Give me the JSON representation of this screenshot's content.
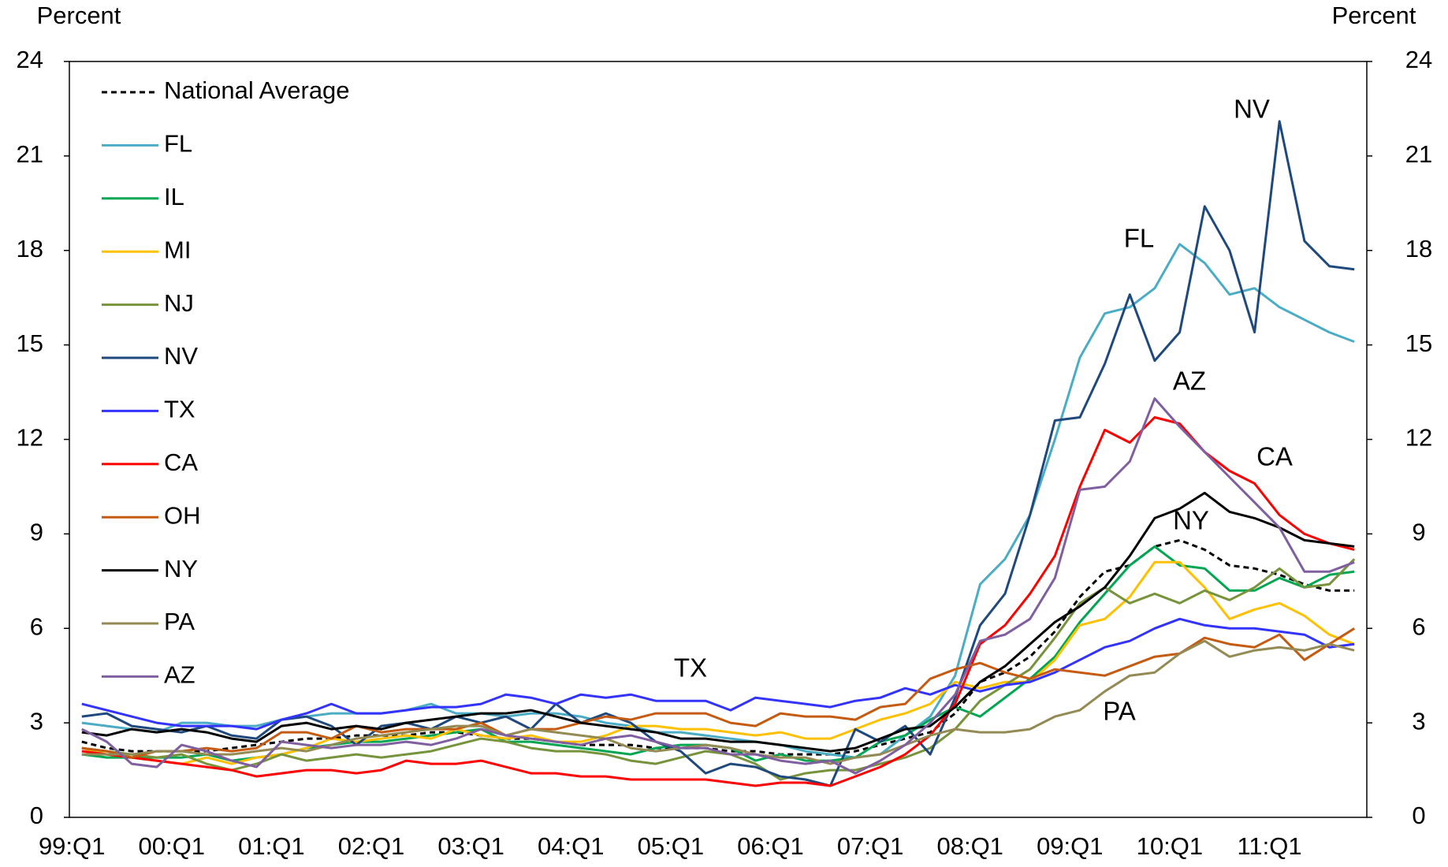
{
  "chart_data": {
    "type": "line",
    "y_axis_label": "Percent",
    "y2_axis_label": "Percent",
    "categories": [
      "99:Q1",
      null,
      null,
      null,
      "00:Q1",
      null,
      null,
      null,
      "01:Q1",
      null,
      null,
      null,
      "02:Q1",
      null,
      null,
      null,
      "03:Q1",
      null,
      null,
      null,
      "04:Q1",
      null,
      null,
      null,
      "05:Q1",
      null,
      null,
      null,
      "06:Q1",
      null,
      null,
      null,
      "07:Q1",
      null,
      null,
      null,
      "08:Q1",
      null,
      null,
      null,
      "09:Q1",
      null,
      null,
      null,
      "10:Q1",
      null,
      null,
      null,
      "11:Q1",
      null,
      null,
      null
    ],
    "ylim": [
      0,
      24
    ],
    "yticks": [
      0,
      3,
      6,
      9,
      12,
      15,
      18,
      21,
      24
    ],
    "y2lim": [
      0,
      24
    ],
    "y2ticks": [
      0,
      3,
      6,
      9,
      12,
      15,
      18,
      21,
      24
    ],
    "legend": "upper left",
    "series": [
      {
        "name": "National Average",
        "color": "#000000",
        "dashed": true,
        "values": [
          2.4,
          2.2,
          2.1,
          2.1,
          2.1,
          2.1,
          2.2,
          2.3,
          2.4,
          2.5,
          2.5,
          2.6,
          2.6,
          2.6,
          2.7,
          2.7,
          2.6,
          2.5,
          2.5,
          2.4,
          2.3,
          2.3,
          2.3,
          2.2,
          2.2,
          2.2,
          2.1,
          2.1,
          2.0,
          2.0,
          2.0,
          2.1,
          2.3,
          2.5,
          2.7,
          3.3,
          4.3,
          4.6,
          5.1,
          5.9,
          7.0,
          7.8,
          8.0,
          8.6,
          8.8,
          8.5,
          8.0,
          7.9,
          7.7,
          7.4,
          7.2,
          7.2
        ]
      },
      {
        "name": "FL",
        "color": "#4bacc6",
        "values": [
          3.0,
          2.9,
          2.8,
          2.7,
          3.0,
          3.0,
          2.9,
          2.9,
          3.1,
          3.2,
          3.3,
          3.3,
          3.3,
          3.4,
          3.6,
          3.3,
          3.3,
          3.2,
          3.3,
          3.3,
          3.2,
          3.0,
          2.9,
          2.7,
          2.7,
          2.6,
          2.5,
          2.4,
          2.3,
          2.1,
          2.0,
          1.9,
          2.0,
          2.6,
          3.2,
          4.5,
          7.4,
          8.2,
          9.6,
          12.0,
          14.6,
          16.0,
          16.2,
          16.8,
          18.2,
          17.6,
          16.6,
          16.8,
          16.2,
          15.8,
          15.4,
          15.1
        ]
      },
      {
        "name": "IL",
        "color": "#00a651",
        "values": [
          2.0,
          1.9,
          1.9,
          1.9,
          1.9,
          2.0,
          1.8,
          1.9,
          2.0,
          2.2,
          2.3,
          2.4,
          2.4,
          2.5,
          2.6,
          2.7,
          2.8,
          2.4,
          2.4,
          2.3,
          2.2,
          2.1,
          2.0,
          2.2,
          2.3,
          2.3,
          2.2,
          1.8,
          2.0,
          1.8,
          1.8,
          1.9,
          2.4,
          2.6,
          3.1,
          3.5,
          3.2,
          3.8,
          4.4,
          5.1,
          6.2,
          7.1,
          8.0,
          8.6,
          8.0,
          7.9,
          7.2,
          7.2,
          7.6,
          7.3,
          7.7,
          7.8
        ]
      },
      {
        "name": "MI",
        "color": "#ffc000",
        "values": [
          2.2,
          2.0,
          1.9,
          1.8,
          1.7,
          1.9,
          1.7,
          1.9,
          2.0,
          2.2,
          2.5,
          2.4,
          2.5,
          2.6,
          2.5,
          2.8,
          2.6,
          2.5,
          2.6,
          2.4,
          2.4,
          2.6,
          2.9,
          2.9,
          2.8,
          2.8,
          2.7,
          2.6,
          2.7,
          2.5,
          2.5,
          2.8,
          3.1,
          3.3,
          3.6,
          4.3,
          4.1,
          4.3,
          4.3,
          5.0,
          6.1,
          6.3,
          7.0,
          8.1,
          8.1,
          7.3,
          6.3,
          6.6,
          6.8,
          6.4,
          5.8,
          5.5
        ]
      },
      {
        "name": "NJ",
        "color": "#77933c",
        "values": [
          2.2,
          2.1,
          2.0,
          1.9,
          2.0,
          1.7,
          1.5,
          1.7,
          2.0,
          1.8,
          1.9,
          2.0,
          1.9,
          2.0,
          2.1,
          2.3,
          2.5,
          2.4,
          2.2,
          2.1,
          2.1,
          2.0,
          1.8,
          1.7,
          1.9,
          2.1,
          2.0,
          1.7,
          1.2,
          1.4,
          1.5,
          1.5,
          1.7,
          1.9,
          2.2,
          2.8,
          3.7,
          4.2,
          4.7,
          5.7,
          6.8,
          7.3,
          6.8,
          7.1,
          6.8,
          7.2,
          6.9,
          7.3,
          7.9,
          7.3,
          7.4,
          8.2
        ]
      },
      {
        "name": "NV",
        "color": "#1f497d",
        "values": [
          3.2,
          3.3,
          2.9,
          2.8,
          2.7,
          2.9,
          2.6,
          2.5,
          3.1,
          3.2,
          2.9,
          2.3,
          2.9,
          3.0,
          2.8,
          3.2,
          3.0,
          3.2,
          2.8,
          3.6,
          3.0,
          3.3,
          3.0,
          2.4,
          2.1,
          1.4,
          1.7,
          1.6,
          1.3,
          1.2,
          1.0,
          2.8,
          2.4,
          2.9,
          2.0,
          3.8,
          6.1,
          7.1,
          9.6,
          12.6,
          12.7,
          14.4,
          16.6,
          14.5,
          15.4,
          19.4,
          18.0,
          15.4,
          22.1,
          18.3,
          17.5,
          17.4
        ]
      },
      {
        "name": "TX",
        "color": "#3333ff",
        "values": [
          3.6,
          3.4,
          3.2,
          3.0,
          2.9,
          2.9,
          2.9,
          2.8,
          3.1,
          3.3,
          3.6,
          3.3,
          3.3,
          3.4,
          3.5,
          3.5,
          3.6,
          3.9,
          3.8,
          3.6,
          3.9,
          3.8,
          3.9,
          3.7,
          3.7,
          3.7,
          3.4,
          3.8,
          3.7,
          3.6,
          3.5,
          3.7,
          3.8,
          4.1,
          3.9,
          4.2,
          4.0,
          4.2,
          4.3,
          4.6,
          5.0,
          5.4,
          5.6,
          6.0,
          6.3,
          6.1,
          6.0,
          6.0,
          5.9,
          5.8,
          5.4,
          5.5
        ]
      },
      {
        "name": "CA",
        "color": "#ff0000",
        "values": [
          2.1,
          2.0,
          1.9,
          1.8,
          1.7,
          1.6,
          1.5,
          1.3,
          1.4,
          1.5,
          1.5,
          1.4,
          1.5,
          1.8,
          1.7,
          1.7,
          1.8,
          1.6,
          1.4,
          1.4,
          1.3,
          1.3,
          1.2,
          1.2,
          1.2,
          1.2,
          1.1,
          1.0,
          1.1,
          1.1,
          1.0,
          1.3,
          1.6,
          2.0,
          2.6,
          3.6,
          5.5,
          6.1,
          7.1,
          8.3,
          10.5,
          12.3,
          11.9,
          12.7,
          12.5,
          11.6,
          11.0,
          10.6,
          9.6,
          9.0,
          8.7,
          8.5
        ]
      },
      {
        "name": "OH",
        "color": "#c55a11",
        "values": [
          2.2,
          2.1,
          1.9,
          2.1,
          2.1,
          2.2,
          2.1,
          2.2,
          2.7,
          2.7,
          2.5,
          2.9,
          2.7,
          2.8,
          2.8,
          2.8,
          3.0,
          2.6,
          2.8,
          2.8,
          3.0,
          3.2,
          3.1,
          3.3,
          3.3,
          3.3,
          3.0,
          2.9,
          3.3,
          3.2,
          3.2,
          3.1,
          3.5,
          3.6,
          4.4,
          4.7,
          4.9,
          4.6,
          4.4,
          4.7,
          4.6,
          4.5,
          4.8,
          5.1,
          5.2,
          5.7,
          5.5,
          5.4,
          5.8,
          5.0,
          5.5,
          6.0
        ]
      },
      {
        "name": "NY",
        "color": "#000000",
        "values": [
          2.7,
          2.6,
          2.8,
          2.7,
          2.8,
          2.7,
          2.5,
          2.4,
          2.9,
          3.0,
          2.8,
          2.9,
          2.8,
          3.0,
          3.1,
          3.2,
          3.3,
          3.3,
          3.4,
          3.2,
          3.0,
          2.9,
          2.8,
          2.7,
          2.5,
          2.5,
          2.4,
          2.4,
          2.3,
          2.2,
          2.1,
          2.2,
          2.5,
          2.8,
          2.9,
          3.5,
          4.3,
          4.8,
          5.5,
          6.2,
          6.7,
          7.3,
          8.3,
          9.5,
          9.8,
          10.3,
          9.7,
          9.5,
          9.2,
          8.8,
          8.7,
          8.6
        ]
      },
      {
        "name": "PA",
        "color": "#948a54",
        "values": [
          2.0,
          2.0,
          2.0,
          2.1,
          2.1,
          2.0,
          2.0,
          2.1,
          2.2,
          2.1,
          2.3,
          2.5,
          2.6,
          2.7,
          2.8,
          2.9,
          2.9,
          2.6,
          2.8,
          2.7,
          2.6,
          2.5,
          2.2,
          2.1,
          2.2,
          2.3,
          2.2,
          2.0,
          1.9,
          1.9,
          1.7,
          1.9,
          2.0,
          2.3,
          2.6,
          2.8,
          2.7,
          2.7,
          2.8,
          3.2,
          3.4,
          4.0,
          4.5,
          4.6,
          5.2,
          5.6,
          5.1,
          5.3,
          5.4,
          5.3,
          5.5,
          5.3
        ]
      },
      {
        "name": "AZ",
        "color": "#7f5f9f",
        "values": [
          2.8,
          2.4,
          1.7,
          1.6,
          2.3,
          2.1,
          1.8,
          1.6,
          2.4,
          2.3,
          2.2,
          2.3,
          2.3,
          2.4,
          2.3,
          2.5,
          2.8,
          2.6,
          2.5,
          2.4,
          2.3,
          2.5,
          2.6,
          2.4,
          2.2,
          2.2,
          2.0,
          2.0,
          1.8,
          1.7,
          1.8,
          1.4,
          1.8,
          2.3,
          3.0,
          3.9,
          5.6,
          5.8,
          6.3,
          7.6,
          10.4,
          10.5,
          11.3,
          13.3,
          12.4,
          11.6,
          10.8,
          10.0,
          9.2,
          7.8,
          7.8,
          8.1
        ]
      }
    ],
    "annotations": [
      "NV",
      "FL",
      "AZ",
      "CA",
      "NY",
      "TX",
      "PA"
    ]
  }
}
